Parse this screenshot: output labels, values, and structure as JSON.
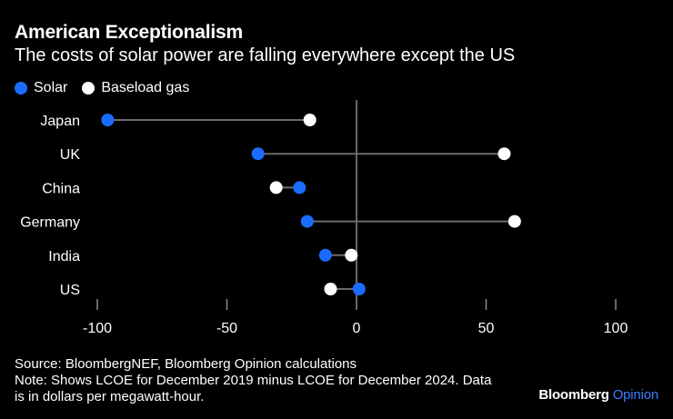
{
  "header": {
    "title": "American Exceptionalism",
    "subtitle": "The costs of solar power are falling everywhere except the US"
  },
  "footer": {
    "source": "Source: BloombergNEF, Bloomberg Opinion calculations",
    "note_line1": "Note: Shows LCOE for December 2019 minus LCOE for December 2024. Data",
    "note_line2": "is in dollars per megawatt-hour."
  },
  "brand": {
    "name": "Bloomberg",
    "suffix": "Opinion"
  },
  "colors": {
    "background": "#000000",
    "solar": "#1a6cff",
    "gas": "#ffffff",
    "connector": "#6b6b6b",
    "zero_line": "#8a8a8a",
    "tick": "#8a8a8a"
  },
  "chart_data": {
    "type": "dot-plot",
    "title": "American Exceptionalism",
    "subtitle": "The costs of solar power are falling everywhere except the US",
    "xlabel": "",
    "ylabel": "",
    "xlim": [
      -100,
      100
    ],
    "xticks": [
      -100,
      -50,
      0,
      50,
      100
    ],
    "xtick_labels": [
      "-100",
      "-50",
      "0",
      "50",
      "100"
    ],
    "grid": false,
    "legend_position": "top-left",
    "categories": [
      "Japan",
      "UK",
      "China",
      "Germany",
      "India",
      "US"
    ],
    "series": [
      {
        "name": "Solar",
        "color": "#1a6cff",
        "values": [
          -96,
          -38,
          -22,
          -19,
          -12,
          1
        ]
      },
      {
        "name": "Baseload gas",
        "color": "#ffffff",
        "values": [
          -18,
          57,
          -31,
          61,
          -2,
          -10
        ]
      }
    ]
  }
}
